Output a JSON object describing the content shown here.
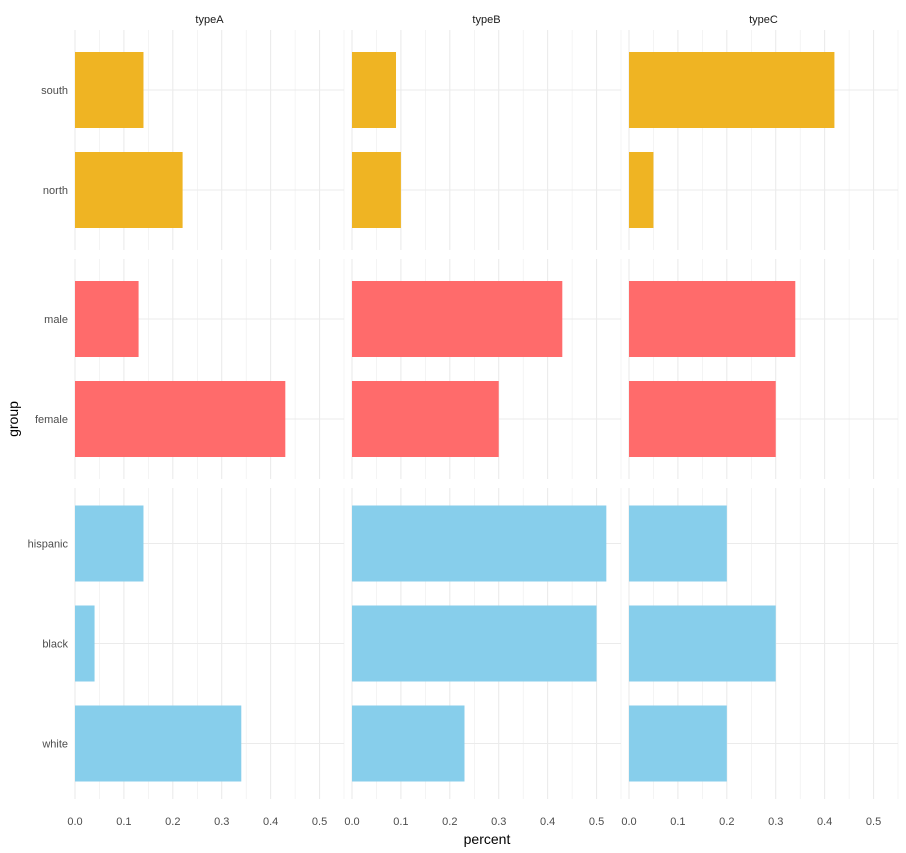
{
  "chart_data": {
    "type": "bar",
    "orientation": "horizontal",
    "xlabel": "percent",
    "ylabel": "group",
    "xlim": [
      0,
      0.55
    ],
    "x_ticks": [
      "0.0",
      "0.1",
      "0.2",
      "0.3",
      "0.4",
      "0.5"
    ],
    "grid": true,
    "facet_columns": [
      "typeA",
      "typeB",
      "typeC"
    ],
    "facet_rows": [
      {
        "color": "#EFB423",
        "categories": [
          "south",
          "north"
        ],
        "values": {
          "typeA": [
            0.14,
            0.22
          ],
          "typeB": [
            0.09,
            0.1
          ],
          "typeC": [
            0.42,
            0.05
          ]
        }
      },
      {
        "color": "#FF6B6B",
        "categories": [
          "male",
          "female"
        ],
        "values": {
          "typeA": [
            0.13,
            0.43
          ],
          "typeB": [
            0.43,
            0.3
          ],
          "typeC": [
            0.34,
            0.3
          ]
        }
      },
      {
        "color": "#87CEEB",
        "categories": [
          "hispanic",
          "black",
          "white"
        ],
        "values": {
          "typeA": [
            0.14,
            0.04,
            0.34
          ],
          "typeB": [
            0.52,
            0.5,
            0.23
          ],
          "typeC": [
            0.2,
            0.3,
            0.2
          ]
        }
      }
    ]
  }
}
